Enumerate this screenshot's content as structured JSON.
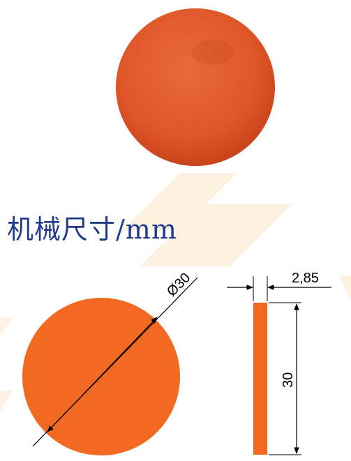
{
  "heading": "机械尺寸/mm",
  "diameter_label": "Ø30",
  "thickness_label": "2,85",
  "height_label": "30",
  "colors": {
    "product": "#E35A2A",
    "drawing_fill": "#F26A22",
    "heading": "#1F3A8F",
    "watermark": "#FCE8C8",
    "line": "#000000"
  }
}
